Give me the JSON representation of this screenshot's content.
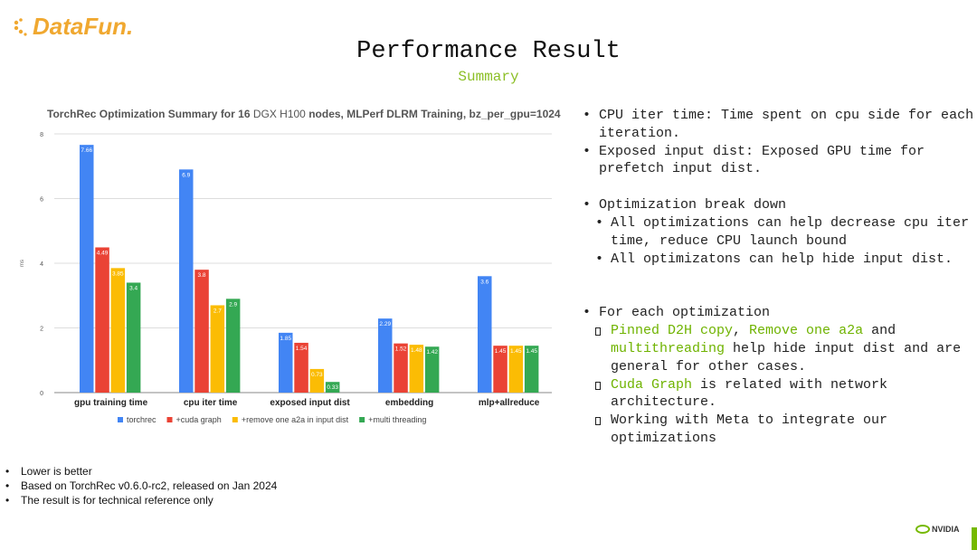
{
  "brand": {
    "logo": "DataFun.",
    "logo_color": "#f0a830",
    "footer_logo": "NVIDIA",
    "footer_color": "#76b900"
  },
  "slide": {
    "title": "Performance Result",
    "subtitle": "Summary"
  },
  "chart_data": {
    "type": "bar",
    "title_parts": [
      "TorchRec Optimization Summary for 16",
      "DGX H100",
      "nodes, MLPerf DLRM Training, bz_per_gpu=1024"
    ],
    "ylabel": "ms",
    "ylim": [
      0,
      8
    ],
    "yticks": [
      "0",
      "2",
      "4",
      "6",
      "8"
    ],
    "grid": true,
    "legend_position": "bottom",
    "categories": [
      "gpu training time",
      "cpu iter time",
      "exposed input dist",
      "embedding",
      "mlp+allreduce"
    ],
    "series": [
      {
        "name": "torchrec",
        "color": "#4285f4",
        "values": [
          7.66,
          6.9,
          1.85,
          2.29,
          3.6
        ],
        "labels": [
          "7.66",
          "6.9",
          "1.85",
          "2.29",
          "3.6"
        ]
      },
      {
        "name": "+cuda graph",
        "color": "#ea4335",
        "values": [
          4.49,
          3.8,
          1.54,
          1.52,
          1.45
        ],
        "labels": [
          "4.49",
          "3.8",
          "1.54",
          "1.52",
          "1.45"
        ]
      },
      {
        "name": "+remove one a2a in input dist",
        "color": "#fbbc04",
        "values": [
          3.85,
          2.7,
          0.73,
          1.48,
          1.45
        ],
        "labels": [
          "3.85",
          "2.7",
          "0.73",
          "1.48",
          "1.45"
        ]
      },
      {
        "name": "+multi threading",
        "color": "#34a853",
        "values": [
          3.4,
          2.9,
          0.33,
          1.42,
          1.45
        ],
        "labels": [
          "3.4",
          "2.9",
          "0.33",
          "1.42",
          "1.45"
        ]
      }
    ]
  },
  "bullets": {
    "b1": "CPU iter time: Time spent on cpu side for each iteration.",
    "b2": "Exposed input dist: Exposed GPU time for prefetch input dist.",
    "b3": "Optimization break down",
    "b3_1": "All optimizations can help decrease cpu iter time, reduce CPU launch bound",
    "b3_2": "All optimizatons can help hide input dist.",
    "b4": "For each optimization",
    "s1_green_a": "Pinned D2H copy",
    "s1_sep": ", ",
    "s1_green_b": "Remove one a2a",
    "s1_mid": " and ",
    "s1_green_c": "multithreading",
    "s1_rest": " help hide input dist and are general for other cases.",
    "s2_green": "Cuda Graph",
    "s2_rest": " is related with network architecture.",
    "s3": "Working with Meta to integrate our optimizations"
  },
  "notes": [
    "Lower is better",
    "Based on TorchRec v0.6.0-rc2, released on Jan 2024",
    "The result is for technical reference only"
  ]
}
